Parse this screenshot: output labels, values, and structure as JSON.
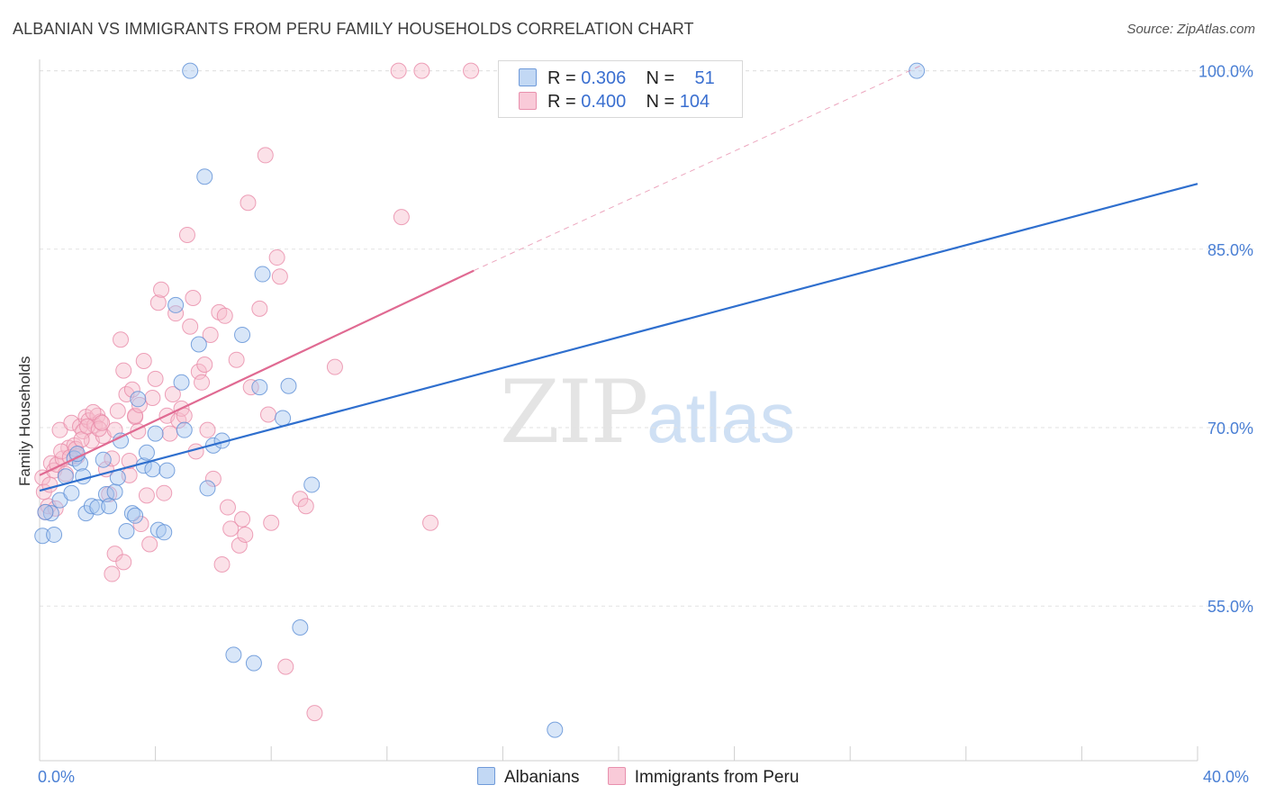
{
  "title": "ALBANIAN VS IMMIGRANTS FROM PERU FAMILY HOUSEHOLDS CORRELATION CHART",
  "source": "Source: ZipAtlas.com",
  "watermark": {
    "zip": "ZIP",
    "atlas": "atlas"
  },
  "legend": {
    "albanians": {
      "r_label": "R =",
      "r_value": "0.306",
      "n_label": "N =",
      "n_value": "51"
    },
    "peru": {
      "r_label": "R =",
      "r_value": "0.400",
      "n_label": "N =",
      "n_value": "104"
    }
  },
  "colors": {
    "albanians_fill": "#a9c7ef",
    "albanians_stroke": "#5d8fd6",
    "albanians_line": "#2f6fce",
    "peru_fill": "#f6bccd",
    "peru_stroke": "#e88aa8",
    "peru_line": "#e06a92"
  },
  "chart_data": {
    "type": "scatter",
    "title": "ALBANIAN VS IMMIGRANTS FROM PERU FAMILY HOUSEHOLDS CORRELATION CHART",
    "xlabel": "",
    "ylabel": "Family Households",
    "xlim": [
      0,
      40
    ],
    "ylim": [
      42,
      100.5
    ],
    "x_tick_labels": [
      "0.0%",
      "40.0%"
    ],
    "y_ticks": [
      55,
      70,
      85,
      100
    ],
    "y_tick_labels": [
      "55.0%",
      "70.0%",
      "85.0%",
      "100.0%"
    ],
    "legend_position": "top-center",
    "series": [
      {
        "name": "Albanians",
        "r": 0.306,
        "n": 51,
        "trend": {
          "x": [
            0,
            40
          ],
          "y": [
            64.7,
            90.5
          ]
        },
        "points": [
          [
            0.1,
            60.9
          ],
          [
            0.5,
            61.0
          ],
          [
            0.4,
            62.8
          ],
          [
            0.7,
            63.9
          ],
          [
            0.9,
            65.9
          ],
          [
            1.1,
            64.5
          ],
          [
            1.2,
            67.4
          ],
          [
            1.4,
            67.0
          ],
          [
            1.5,
            65.9
          ],
          [
            1.6,
            62.8
          ],
          [
            1.8,
            63.4
          ],
          [
            2.0,
            63.3
          ],
          [
            2.2,
            67.3
          ],
          [
            2.3,
            64.4
          ],
          [
            2.4,
            63.4
          ],
          [
            2.6,
            64.6
          ],
          [
            2.7,
            65.8
          ],
          [
            2.8,
            68.9
          ],
          [
            3.0,
            61.3
          ],
          [
            3.2,
            62.8
          ],
          [
            3.3,
            62.6
          ],
          [
            3.4,
            72.4
          ],
          [
            3.6,
            66.8
          ],
          [
            3.7,
            67.9
          ],
          [
            3.9,
            66.5
          ],
          [
            4.0,
            69.5
          ],
          [
            4.1,
            61.4
          ],
          [
            4.3,
            61.2
          ],
          [
            4.4,
            66.4
          ],
          [
            4.7,
            80.3
          ],
          [
            4.9,
            73.8
          ],
          [
            5.0,
            69.8
          ],
          [
            5.2,
            100.0
          ],
          [
            5.5,
            77.0
          ],
          [
            5.7,
            91.1
          ],
          [
            5.8,
            64.9
          ],
          [
            6.0,
            68.5
          ],
          [
            6.3,
            68.9
          ],
          [
            6.7,
            50.9
          ],
          [
            7.0,
            77.8
          ],
          [
            7.4,
            50.2
          ],
          [
            7.6,
            73.4
          ],
          [
            7.7,
            82.9
          ],
          [
            8.4,
            70.8
          ],
          [
            8.6,
            73.5
          ],
          [
            9.0,
            53.2
          ],
          [
            9.4,
            65.2
          ],
          [
            17.8,
            44.6
          ],
          [
            30.3,
            100.0
          ],
          [
            0.2,
            62.9
          ],
          [
            1.3,
            67.8
          ]
        ]
      },
      {
        "name": "Immigrants from Peru",
        "r": 0.4,
        "n": 104,
        "trend": {
          "x": [
            0,
            15
          ],
          "y": [
            66.0,
            83.2
          ]
        },
        "trend_extension": {
          "x": [
            15,
            30.5
          ],
          "y": [
            83.2,
            100.5
          ]
        },
        "points": [
          [
            0.1,
            65.8
          ],
          [
            0.2,
            62.9
          ],
          [
            0.3,
            63.4
          ],
          [
            0.4,
            67.0
          ],
          [
            0.5,
            66.4
          ],
          [
            0.6,
            66.9
          ],
          [
            0.7,
            69.8
          ],
          [
            0.8,
            67.4
          ],
          [
            0.9,
            66.1
          ],
          [
            1.0,
            68.3
          ],
          [
            1.1,
            70.4
          ],
          [
            1.2,
            68.5
          ],
          [
            1.3,
            67.6
          ],
          [
            1.4,
            70.1
          ],
          [
            1.5,
            69.7
          ],
          [
            1.6,
            70.9
          ],
          [
            1.7,
            70.6
          ],
          [
            1.8,
            68.9
          ],
          [
            1.9,
            70.2
          ],
          [
            2.0,
            71.0
          ],
          [
            2.1,
            70.5
          ],
          [
            2.2,
            69.3
          ],
          [
            2.3,
            66.5
          ],
          [
            2.4,
            64.4
          ],
          [
            2.5,
            67.4
          ],
          [
            2.6,
            69.8
          ],
          [
            2.7,
            71.4
          ],
          [
            2.8,
            77.4
          ],
          [
            2.9,
            74.8
          ],
          [
            3.0,
            72.8
          ],
          [
            3.1,
            66.0
          ],
          [
            3.2,
            73.2
          ],
          [
            3.3,
            70.9
          ],
          [
            3.4,
            69.7
          ],
          [
            3.5,
            61.9
          ],
          [
            3.6,
            75.6
          ],
          [
            3.7,
            64.3
          ],
          [
            3.8,
            60.2
          ],
          [
            3.9,
            72.5
          ],
          [
            4.0,
            74.1
          ],
          [
            4.1,
            80.5
          ],
          [
            4.2,
            81.6
          ],
          [
            4.3,
            64.5
          ],
          [
            4.4,
            71.0
          ],
          [
            4.5,
            69.5
          ],
          [
            4.6,
            72.8
          ],
          [
            4.7,
            79.6
          ],
          [
            4.8,
            70.6
          ],
          [
            4.9,
            71.6
          ],
          [
            5.0,
            71.0
          ],
          [
            5.1,
            86.2
          ],
          [
            5.2,
            78.5
          ],
          [
            5.3,
            80.9
          ],
          [
            5.4,
            68.0
          ],
          [
            5.5,
            74.7
          ],
          [
            5.6,
            73.8
          ],
          [
            5.7,
            75.3
          ],
          [
            5.8,
            69.8
          ],
          [
            5.9,
            77.8
          ],
          [
            6.0,
            65.7
          ],
          [
            6.2,
            79.7
          ],
          [
            6.3,
            58.5
          ],
          [
            6.4,
            79.4
          ],
          [
            6.5,
            63.3
          ],
          [
            6.6,
            61.5
          ],
          [
            6.8,
            75.7
          ],
          [
            6.9,
            60.1
          ],
          [
            7.0,
            62.3
          ],
          [
            7.1,
            61.0
          ],
          [
            7.2,
            88.9
          ],
          [
            7.3,
            73.4
          ],
          [
            7.6,
            80.0
          ],
          [
            7.8,
            92.9
          ],
          [
            7.9,
            71.1
          ],
          [
            8.0,
            62.0
          ],
          [
            8.2,
            84.3
          ],
          [
            8.3,
            82.7
          ],
          [
            8.5,
            49.9
          ],
          [
            9.0,
            64.0
          ],
          [
            9.2,
            63.4
          ],
          [
            9.5,
            46.0
          ],
          [
            10.2,
            75.1
          ],
          [
            12.4,
            100.0
          ],
          [
            12.5,
            87.7
          ],
          [
            13.2,
            100.0
          ],
          [
            13.5,
            62.0
          ],
          [
            14.9,
            100.0
          ],
          [
            2.5,
            57.7
          ],
          [
            2.6,
            59.4
          ],
          [
            2.9,
            58.7
          ],
          [
            3.1,
            67.2
          ],
          [
            3.3,
            71.0
          ],
          [
            0.15,
            64.6
          ],
          [
            0.35,
            65.2
          ],
          [
            0.55,
            63.2
          ],
          [
            0.75,
            68.0
          ],
          [
            1.05,
            67.5
          ],
          [
            1.25,
            68.2
          ],
          [
            1.45,
            69.0
          ],
          [
            1.65,
            70.1
          ],
          [
            1.85,
            71.3
          ],
          [
            2.05,
            69.9
          ],
          [
            2.15,
            70.4
          ],
          [
            3.45,
            71.9
          ]
        ]
      }
    ]
  },
  "bottom_legend": [
    "Albanians",
    "Immigrants from Peru"
  ]
}
